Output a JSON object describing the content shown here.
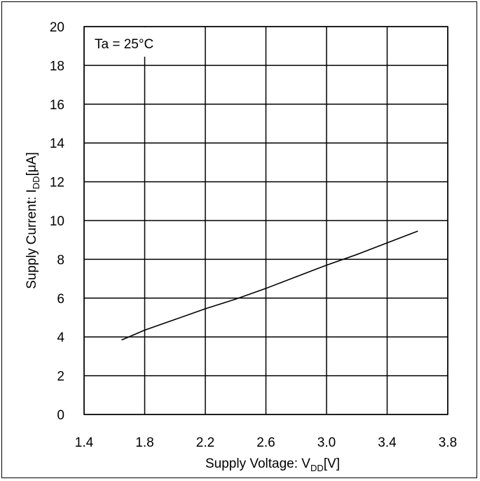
{
  "chart_data": {
    "type": "line",
    "annotation": "Ta = 25°C",
    "xlabel": {
      "main": "Supply Voltage: V",
      "sub": "DD",
      "unit": "[V]"
    },
    "ylabel": {
      "main": "Supply Current: I",
      "sub": "DD",
      "unit": "[μA]"
    },
    "xlim": [
      1.4,
      3.8
    ],
    "ylim": [
      0,
      20
    ],
    "x_ticks": [
      1.4,
      1.8,
      2.2,
      2.6,
      3.0,
      3.4,
      3.8
    ],
    "x_tick_labels": [
      "1.4",
      "1.8",
      "2.2",
      "2.6",
      "3.0",
      "3.4",
      "3.8"
    ],
    "y_ticks": [
      0,
      2,
      4,
      6,
      8,
      10,
      12,
      14,
      16,
      18,
      20
    ],
    "y_tick_labels": [
      "0",
      "2",
      "4",
      "6",
      "8",
      "10",
      "12",
      "14",
      "16",
      "18",
      "20"
    ],
    "grid": true,
    "series": [
      {
        "x": [
          1.65,
          1.8,
          2.0,
          2.2,
          2.4,
          2.6,
          2.8,
          3.0,
          3.2,
          3.4,
          3.6
        ],
        "y": [
          3.85,
          4.35,
          4.9,
          5.45,
          5.95,
          6.5,
          7.1,
          7.7,
          8.25,
          8.85,
          9.45
        ],
        "color": "#000000"
      }
    ]
  }
}
